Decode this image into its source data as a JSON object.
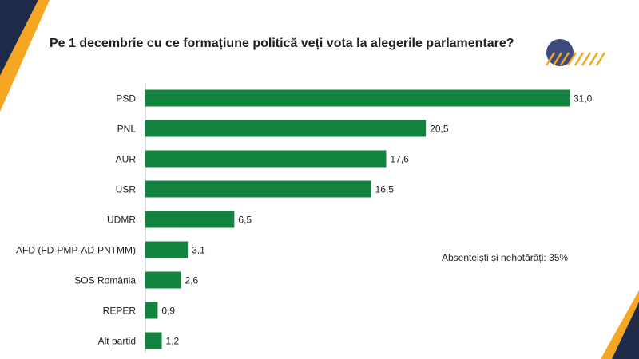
{
  "chart_data": {
    "type": "bar",
    "orientation": "horizontal",
    "title": "Pe 1 decembrie cu ce formațiune politică veți vota la alegerile parlamentare?",
    "categories": [
      "PSD",
      "PNL",
      "AUR",
      "USR",
      "UDMR",
      "AFD (FD-PMP-AD-PNTMM)",
      "SOS România",
      "REPER",
      "Alt partid"
    ],
    "values": [
      31.0,
      20.5,
      17.6,
      16.5,
      6.5,
      3.1,
      2.6,
      0.9,
      1.2
    ],
    "value_labels": [
      "31,0",
      "20,5",
      "17,6",
      "16,5",
      "6,5",
      "3,1",
      "2,6",
      "0,9",
      "1,2"
    ],
    "xlim": [
      0,
      31.0
    ],
    "xlabel": "",
    "ylabel": "",
    "grid": false,
    "legend": "none",
    "annotation": "Absenteiști și nehotărâți: 35%",
    "bar_color": "#13843f"
  },
  "theme": {
    "navy": "#1e2a47",
    "orange": "#f5a623",
    "circle": "#3c4a7e",
    "text": "#1f1f1f"
  }
}
